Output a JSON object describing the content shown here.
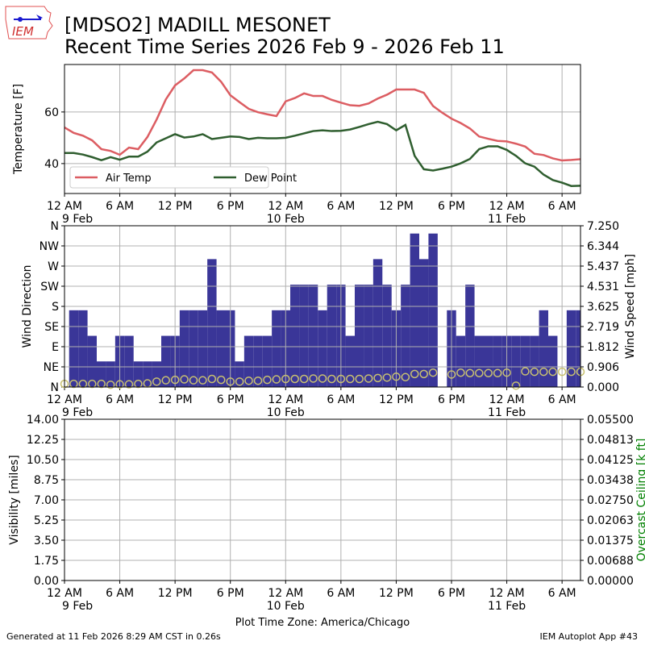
{
  "header": {
    "title_line1": "[MDSO2] MADILL MESONET",
    "title_line2": "Recent Time Series 2026 Feb 9 - 2026 Feb 11",
    "logo_text": "IEM"
  },
  "footer": {
    "generated": "Generated at 11 Feb 2026 8:29 AM CST in 0.26s",
    "app": "IEM Autoplot App #43",
    "timezone_label": "Plot Time Zone: America/Chicago"
  },
  "x_axis": {
    "hours_span": 56,
    "ticks": [
      {
        "hour": 0,
        "label": "12 AM",
        "date": "9 Feb"
      },
      {
        "hour": 6,
        "label": "6 AM",
        "date": ""
      },
      {
        "hour": 12,
        "label": "12 PM",
        "date": ""
      },
      {
        "hour": 18,
        "label": "6 PM",
        "date": ""
      },
      {
        "hour": 24,
        "label": "12 AM",
        "date": "10 Feb"
      },
      {
        "hour": 30,
        "label": "6 AM",
        "date": ""
      },
      {
        "hour": 36,
        "label": "12 PM",
        "date": ""
      },
      {
        "hour": 42,
        "label": "6 PM",
        "date": ""
      },
      {
        "hour": 48,
        "label": "12 AM",
        "date": "11 Feb"
      },
      {
        "hour": 54,
        "label": "6 AM",
        "date": ""
      }
    ]
  },
  "chart_data": [
    {
      "type": "line",
      "ylabel": "Temperature [F]",
      "ylim": [
        28.4,
        78.4
      ],
      "yticks": [
        40,
        60
      ],
      "grid": true,
      "legend_position": "lower-left",
      "x_hours": [
        0,
        1,
        2,
        3,
        4,
        5,
        6,
        7,
        8,
        9,
        10,
        11,
        12,
        13,
        14,
        15,
        16,
        17,
        18,
        19,
        20,
        21,
        22,
        23,
        24,
        25,
        26,
        27,
        28,
        29,
        30,
        31,
        32,
        33,
        34,
        35,
        36,
        37,
        38,
        39,
        40,
        41,
        42,
        43,
        44,
        45,
        46,
        47,
        48,
        49,
        50,
        51,
        52,
        53,
        54,
        55,
        56
      ],
      "series": [
        {
          "name": "Air Temp",
          "color": "#dc5d62",
          "values": [
            54.0,
            51.9,
            50.8,
            49.0,
            45.6,
            44.9,
            43.4,
            46.2,
            45.6,
            50.3,
            57.1,
            64.9,
            70.3,
            73.0,
            76.2,
            76.2,
            75.3,
            71.7,
            66.5,
            63.8,
            61.2,
            59.9,
            59.1,
            58.4,
            64.1,
            65.4,
            67.2,
            66.2,
            66.2,
            64.7,
            63.6,
            62.6,
            62.4,
            63.3,
            65.2,
            66.7,
            68.7,
            68.7,
            68.7,
            67.4,
            62.3,
            59.7,
            57.4,
            55.7,
            53.6,
            50.5,
            49.6,
            48.8,
            48.6,
            47.7,
            46.6,
            43.8,
            43.3,
            42.0,
            41.2,
            41.4,
            41.7
          ]
        },
        {
          "name": "Dew Point",
          "color": "#2f5e2f",
          "values": [
            44.1,
            44.1,
            43.5,
            42.5,
            41.3,
            42.5,
            41.5,
            42.7,
            42.7,
            44.6,
            48.2,
            49.8,
            51.4,
            50.1,
            50.5,
            51.4,
            49.5,
            50.0,
            50.5,
            50.3,
            49.5,
            50.0,
            49.8,
            49.8,
            50.0,
            50.8,
            51.7,
            52.6,
            52.9,
            52.6,
            52.7,
            53.2,
            54.2,
            55.3,
            56.2,
            55.3,
            52.9,
            55.0,
            43.0,
            37.8,
            37.3,
            38.0,
            38.8,
            40.1,
            41.8,
            45.6,
            46.7,
            46.7,
            45.3,
            43.0,
            40.1,
            38.8,
            35.7,
            33.6,
            32.6,
            31.3,
            31.4
          ]
        }
      ]
    },
    {
      "type": "bar",
      "ylabel_left": "Wind Direction",
      "ylabel_right": "Wind Speed [mph]",
      "left_ticks": [
        "N",
        "NE",
        "E",
        "SE",
        "S",
        "SW",
        "W",
        "NW",
        "N"
      ],
      "right_ticks": [
        "0.000",
        "0.906",
        "1.812",
        "2.719",
        "3.625",
        "4.531",
        "5.437",
        "6.344",
        "7.250"
      ],
      "speed_ylim": [
        0,
        7.25
      ],
      "direction_ylim": [
        0,
        360
      ],
      "bar_color": "#3a3698",
      "circle_color": "#c8c070",
      "speed_hours": [
        1,
        2,
        3,
        4,
        5,
        6,
        7,
        8,
        9,
        10,
        11,
        12,
        13,
        14,
        15,
        16,
        17,
        18,
        19,
        20,
        21,
        22,
        23,
        24,
        25,
        26,
        27,
        28,
        29,
        30,
        31,
        32,
        33,
        34,
        35,
        36,
        37,
        38,
        39,
        40,
        41,
        42,
        43,
        44,
        45,
        46,
        47,
        48,
        49,
        50,
        51,
        52,
        53,
        54,
        55,
        56
      ],
      "speed_mph": [
        3.45,
        3.45,
        2.3,
        1.15,
        1.15,
        2.3,
        2.3,
        1.15,
        1.15,
        1.15,
        2.3,
        2.3,
        3.45,
        3.45,
        3.45,
        5.75,
        3.45,
        3.45,
        1.15,
        2.3,
        2.3,
        2.3,
        3.45,
        3.45,
        4.6,
        4.6,
        4.6,
        3.45,
        4.6,
        4.6,
        2.3,
        4.6,
        4.6,
        5.75,
        4.6,
        3.45,
        4.6,
        6.9,
        5.75,
        6.9,
        0,
        3.45,
        2.3,
        4.6,
        2.3,
        2.3,
        2.3,
        2.3,
        2.3,
        2.3,
        2.3,
        3.45,
        2.3,
        0,
        3.45,
        3.45
      ],
      "direction_hours": [
        0,
        1,
        2,
        3,
        4,
        5,
        6,
        7,
        8,
        9,
        10,
        11,
        12,
        13,
        14,
        15,
        16,
        17,
        18,
        19,
        20,
        21,
        22,
        23,
        24,
        25,
        26,
        27,
        28,
        29,
        30,
        31,
        32,
        33,
        34,
        35,
        36,
        37,
        38,
        39,
        40,
        41,
        42,
        43,
        44,
        45,
        46,
        47,
        48,
        49,
        50,
        51,
        52,
        53,
        54,
        55,
        56
      ],
      "direction_deg": [
        7,
        7,
        7,
        7,
        7,
        5,
        6,
        6,
        7,
        8,
        12,
        15,
        16,
        17,
        15,
        15,
        18,
        16,
        12,
        12,
        14,
        14,
        16,
        17,
        18,
        18,
        18,
        19,
        19,
        18,
        18,
        18,
        18,
        19,
        20,
        21,
        23,
        22,
        29,
        29,
        32,
        null,
        28,
        32,
        31,
        31,
        31,
        31,
        32,
        3,
        35,
        34,
        34,
        34,
        34,
        34,
        34
      ]
    },
    {
      "type": "line",
      "ylabel_left": "Visibility [miles]",
      "ylabel_right": "Overcast Ceiling [k ft]",
      "right_label_color": "#008000",
      "left_ticks": [
        "0.00",
        "1.75",
        "3.50",
        "5.25",
        "7.00",
        "8.75",
        "10.50",
        "12.25",
        "14.00"
      ],
      "right_ticks": [
        "0.00000",
        "0.00688",
        "0.01375",
        "0.02063",
        "0.02750",
        "0.03438",
        "0.04125",
        "0.04813",
        "0.05500"
      ],
      "ylim_left": [
        0,
        14
      ],
      "ylim_right": [
        0,
        0.055
      ],
      "series": []
    }
  ]
}
